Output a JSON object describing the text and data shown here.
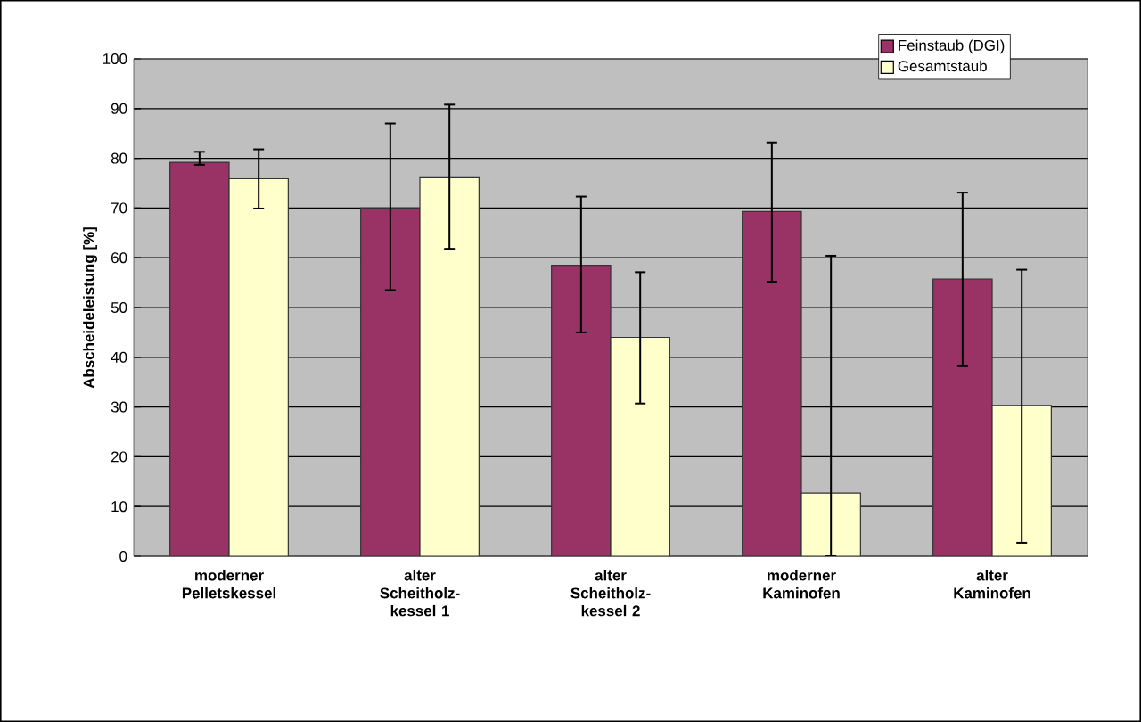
{
  "chart_data": {
    "type": "bar",
    "ylabel": "Abscheideleistung [%]",
    "categories": [
      "moderner Pelletskessel",
      "alter Scheitholz-kessel 1",
      "alter Scheitholz-kessel 2",
      "moderner Kaminofen",
      "alter Kaminofen"
    ],
    "series": [
      {
        "name": "Feinstaub (DGI)",
        "color": "#993366",
        "values": [
          79.2,
          70,
          58.5,
          69.3,
          55.7
        ],
        "errors": [
          [
            78.7,
            81.3
          ],
          [
            53.5,
            87
          ],
          [
            45,
            72.3
          ],
          [
            55.2,
            83.2
          ],
          [
            38.2,
            73.1
          ]
        ]
      },
      {
        "name": "Gesamtstaub",
        "color": "#ffffcc",
        "values": [
          75.9,
          76.1,
          44,
          12.7,
          30.3
        ],
        "errors": [
          [
            69.9,
            81.8
          ],
          [
            61.8,
            90.8
          ],
          [
            30.7,
            57.1
          ],
          [
            0,
            60.4
          ],
          [
            2.7,
            57.6
          ]
        ]
      }
    ],
    "ylim": [
      0,
      100
    ],
    "yticks": [
      0,
      10,
      20,
      30,
      40,
      50,
      60,
      70,
      80,
      90,
      100
    ],
    "grid": "y",
    "legend": "top right"
  }
}
